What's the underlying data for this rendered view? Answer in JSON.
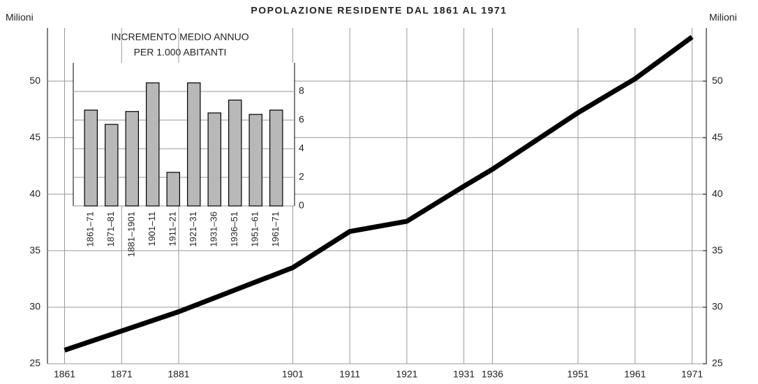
{
  "chart_data": [
    {
      "type": "line",
      "title": "POPOLAZIONE RESIDENTE DAL 1861 AL 1971",
      "ylabel": "Milioni",
      "y2label": "Milioni",
      "x": [
        1861,
        1871,
        1881,
        1901,
        1911,
        1921,
        1931,
        1936,
        1951,
        1961,
        1971
      ],
      "series": [
        {
          "color": "#000000",
          "values": [
            26.2,
            27.9,
            29.6,
            33.5,
            36.7,
            37.6,
            40.7,
            42.2,
            47.2,
            50.2,
            53.9
          ]
        }
      ],
      "xlim": [
        1858,
        1973.5
      ],
      "xticks": [
        1861,
        1871,
        1881,
        1901,
        1911,
        1921,
        1931,
        1936,
        1951,
        1961,
        1971
      ],
      "ylim": [
        25,
        54.7
      ],
      "yticks": [
        25,
        30,
        35,
        40,
        45,
        50
      ],
      "y2lim": [
        25,
        54.7
      ],
      "y2ticks": [
        25,
        30,
        35,
        40,
        45,
        50
      ],
      "grid": true
    },
    {
      "type": "bar",
      "title": [
        "INCREMENTO MEDIO ANNUO",
        "PER 1.000 ABITANTI"
      ],
      "categories": [
        "1861–71",
        "1871–81",
        "1881–1901",
        "1901–11",
        "1911–21",
        "1921–31",
        "1931–36",
        "1936–51",
        "1951–61",
        "1961–71"
      ],
      "values": [
        6.7,
        5.7,
        6.6,
        8.6,
        2.35,
        8.6,
        6.5,
        7.4,
        6.4,
        6.7
      ],
      "color": "#b8b8b8",
      "ylim": [
        0,
        10
      ],
      "yticks": [
        0,
        2,
        4,
        6,
        8
      ],
      "grid": true
    }
  ]
}
